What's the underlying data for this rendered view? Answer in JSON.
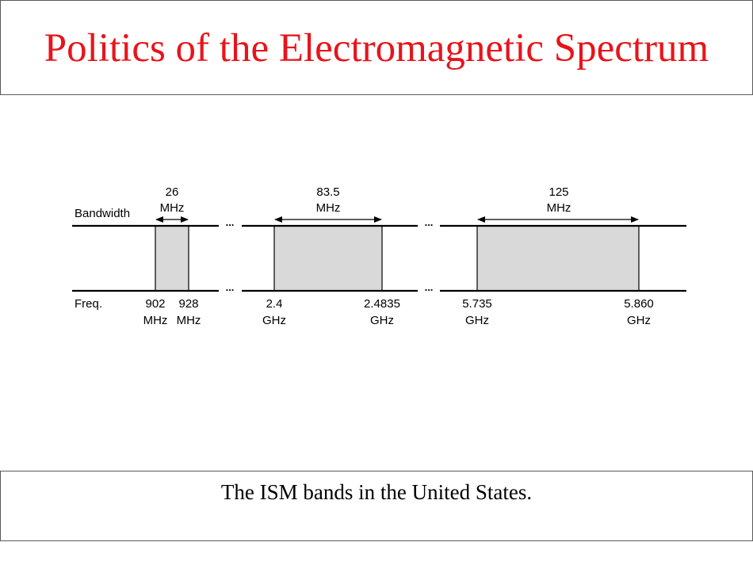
{
  "title": "Politics of the Electromagnetic Spectrum",
  "caption": "The ISM bands in the United States.",
  "diagram": {
    "row_labels": {
      "bandwidth": "Bandwidth",
      "frequency": "Freq."
    },
    "gap_marker": "...",
    "colors": {
      "title": "#e8141b",
      "band_fill": "#d9d9d9",
      "line": "#000000"
    },
    "bands": [
      {
        "width_value": "26",
        "width_unit": "MHz",
        "low_value": "902",
        "low_unit": "MHz",
        "high_value": "928",
        "high_unit": "MHz"
      },
      {
        "width_value": "83.5",
        "width_unit": "MHz",
        "low_value": "2.4",
        "low_unit": "GHz",
        "high_value": "2.4835",
        "high_unit": "GHz"
      },
      {
        "width_value": "125",
        "width_unit": "MHz",
        "low_value": "5.735",
        "low_unit": "GHz",
        "high_value": "5.860",
        "high_unit": "GHz"
      }
    ]
  }
}
